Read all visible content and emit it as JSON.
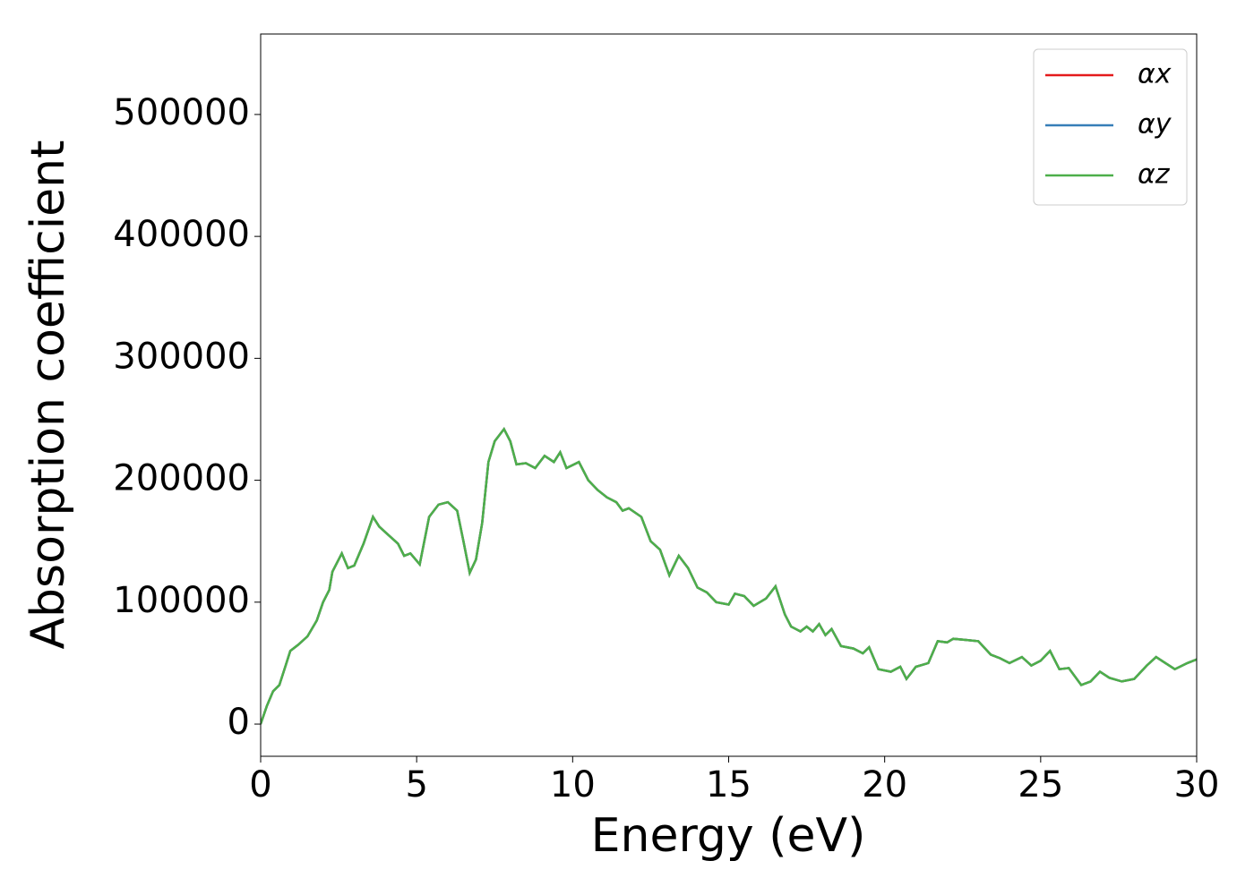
{
  "chart_data": {
    "type": "line",
    "x_label": "Energy (eV)",
    "y_label": "Absorption coefficient",
    "x": [
      0,
      0.2,
      0.4,
      0.6,
      0.8,
      0.95,
      1.2,
      1.5,
      1.8,
      2.0,
      2.2,
      2.3,
      2.6,
      2.8,
      3.0,
      3.3,
      3.6,
      3.8,
      4.1,
      4.4,
      4.6,
      4.8,
      5.1,
      5.4,
      5.7,
      6.0,
      6.3,
      6.5,
      6.7,
      6.9,
      7.1,
      7.3,
      7.5,
      7.8,
      8.0,
      8.2,
      8.5,
      8.8,
      9.1,
      9.4,
      9.6,
      9.8,
      10.2,
      10.5,
      10.8,
      11.1,
      11.4,
      11.6,
      11.8,
      12.2,
      12.5,
      12.8,
      13.1,
      13.4,
      13.7,
      14.0,
      14.3,
      14.6,
      15.0,
      15.2,
      15.5,
      15.8,
      16.2,
      16.5,
      16.8,
      17.0,
      17.3,
      17.5,
      17.7,
      17.9,
      18.1,
      18.3,
      18.6,
      19.0,
      19.3,
      19.5,
      19.8,
      20.2,
      20.5,
      20.7,
      21.0,
      21.4,
      21.7,
      22.0,
      22.2,
      22.6,
      23.0,
      23.4,
      23.7,
      24.0,
      24.4,
      24.7,
      25.0,
      25.3,
      25.6,
      25.9,
      26.3,
      26.6,
      26.9,
      27.2,
      27.6,
      28.0,
      28.4,
      28.7,
      29.0,
      29.3,
      29.7,
      30.0
    ],
    "series": [
      {
        "name": "αx",
        "color": "#e41a1c",
        "values": [
          0,
          15000,
          27000,
          32000,
          48000,
          60000,
          65000,
          72000,
          85000,
          100000,
          110000,
          125000,
          140000,
          128000,
          130000,
          148000,
          170000,
          162000,
          155000,
          148000,
          138000,
          140000,
          131000,
          170000,
          180000,
          182000,
          175000,
          150000,
          124000,
          135000,
          165000,
          215000,
          232000,
          242000,
          232000,
          213000,
          214000,
          210000,
          220000,
          215000,
          223000,
          210000,
          215000,
          200000,
          192000,
          186000,
          182000,
          175000,
          177000,
          170000,
          150000,
          143000,
          122000,
          138000,
          128000,
          112000,
          108000,
          100000,
          98000,
          107000,
          105000,
          97000,
          103000,
          113000,
          90000,
          80000,
          76000,
          80000,
          76000,
          82000,
          73000,
          78000,
          64000,
          62000,
          58000,
          63000,
          45000,
          43000,
          47000,
          37000,
          47000,
          50000,
          68000,
          67000,
          70000,
          69000,
          68000,
          57000,
          54000,
          50000,
          55000,
          48000,
          52000,
          60000,
          45000,
          46000,
          32000,
          35000,
          43000,
          38000,
          35000,
          37000,
          48000,
          55000,
          50000,
          45000,
          50000,
          53000
        ]
      },
      {
        "name": "αy",
        "color": "#377eb8",
        "values": [
          0,
          15000,
          27000,
          32000,
          48000,
          60000,
          65000,
          72000,
          85000,
          100000,
          110000,
          125000,
          140000,
          128000,
          130000,
          148000,
          170000,
          162000,
          155000,
          148000,
          138000,
          140000,
          131000,
          170000,
          180000,
          182000,
          175000,
          150000,
          124000,
          135000,
          165000,
          215000,
          232000,
          242000,
          232000,
          213000,
          214000,
          210000,
          220000,
          215000,
          223000,
          210000,
          215000,
          200000,
          192000,
          186000,
          182000,
          175000,
          177000,
          170000,
          150000,
          143000,
          122000,
          138000,
          128000,
          112000,
          108000,
          100000,
          98000,
          107000,
          105000,
          97000,
          103000,
          113000,
          90000,
          80000,
          76000,
          80000,
          76000,
          82000,
          73000,
          78000,
          64000,
          62000,
          58000,
          63000,
          45000,
          43000,
          47000,
          37000,
          47000,
          50000,
          68000,
          67000,
          70000,
          69000,
          68000,
          57000,
          54000,
          50000,
          55000,
          48000,
          52000,
          60000,
          45000,
          46000,
          32000,
          35000,
          43000,
          38000,
          35000,
          37000,
          48000,
          55000,
          50000,
          45000,
          50000,
          53000
        ]
      },
      {
        "name": "αz",
        "color": "#4daf4a",
        "values": [
          0,
          15000,
          27000,
          32000,
          48000,
          60000,
          65000,
          72000,
          85000,
          100000,
          110000,
          125000,
          140000,
          128000,
          130000,
          148000,
          170000,
          162000,
          155000,
          148000,
          138000,
          140000,
          131000,
          170000,
          180000,
          182000,
          175000,
          150000,
          124000,
          135000,
          165000,
          215000,
          232000,
          242000,
          232000,
          213000,
          214000,
          210000,
          220000,
          215000,
          223000,
          210000,
          215000,
          200000,
          192000,
          186000,
          182000,
          175000,
          177000,
          170000,
          150000,
          143000,
          122000,
          138000,
          128000,
          112000,
          108000,
          100000,
          98000,
          107000,
          105000,
          97000,
          103000,
          113000,
          90000,
          80000,
          76000,
          80000,
          76000,
          82000,
          73000,
          78000,
          64000,
          62000,
          58000,
          63000,
          45000,
          43000,
          47000,
          37000,
          47000,
          50000,
          68000,
          67000,
          70000,
          69000,
          68000,
          57000,
          54000,
          50000,
          55000,
          48000,
          52000,
          60000,
          45000,
          46000,
          32000,
          35000,
          43000,
          38000,
          35000,
          37000,
          48000,
          55000,
          50000,
          45000,
          50000,
          53000
        ]
      }
    ],
    "xlim": [
      0,
      30
    ],
    "xticks": [
      0,
      5,
      10,
      15,
      20,
      25,
      30
    ],
    "ylim": [
      -26400,
      566000
    ],
    "yticks": [
      0,
      100000,
      200000,
      300000,
      400000,
      500000
    ],
    "legend": "upper right"
  }
}
